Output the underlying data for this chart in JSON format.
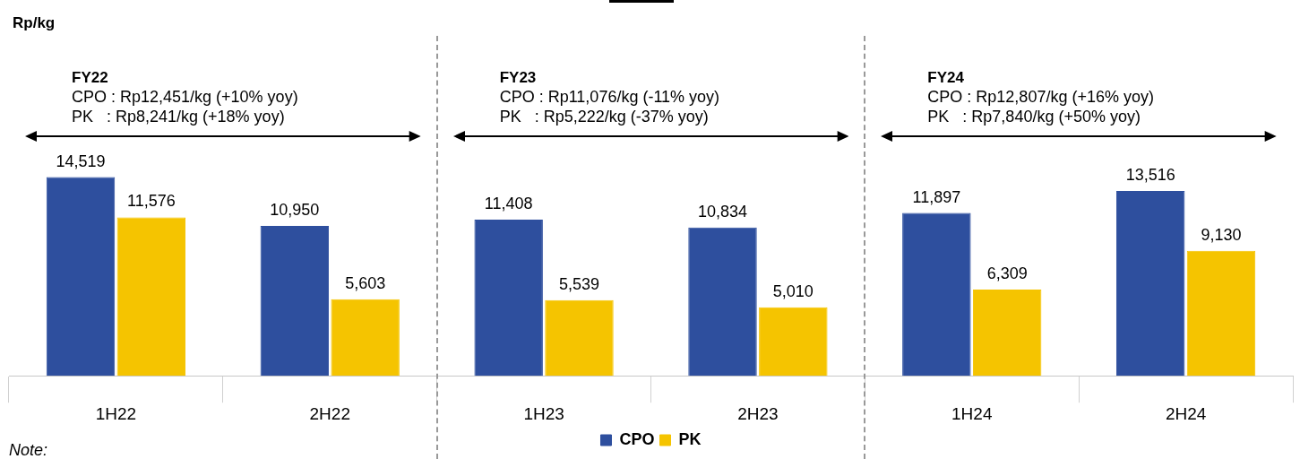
{
  "chart_data": {
    "type": "bar",
    "categories": [
      "1H22",
      "2H22",
      "1H23",
      "2H23",
      "1H24",
      "2H24"
    ],
    "series": [
      {
        "name": "CPO",
        "color": "#2e4f9e",
        "values": [
          14519,
          10950,
          11408,
          10834,
          11897,
          13516
        ],
        "value_labels": [
          "14,519",
          "10,950",
          "11,408",
          "10,834",
          "11,897",
          "13,516"
        ]
      },
      {
        "name": "PK",
        "color": "#f5c400",
        "values": [
          11576,
          5603,
          5539,
          5010,
          6309,
          9130
        ],
        "value_labels": [
          "11,576",
          "5,603",
          "5,539",
          "5,010",
          "6,309",
          "9,130"
        ]
      }
    ],
    "legend": "bottom",
    "annotations": [
      "Rp/kg",
      "FY22",
      "CPO : Rp12,451/kg (+10% yoy)",
      "PK   : Rp8,241/kg (+18% yoy)",
      "FY23",
      "CPO : Rp11,076/kg (-11% yoy)",
      "PK   : Rp5,222/kg (-37% yoy)",
      "FY24",
      "CPO : Rp12,807/kg (+16% yoy)",
      "PK   : Rp7,840/kg (+50% yoy)",
      "Note:"
    ]
  }
}
